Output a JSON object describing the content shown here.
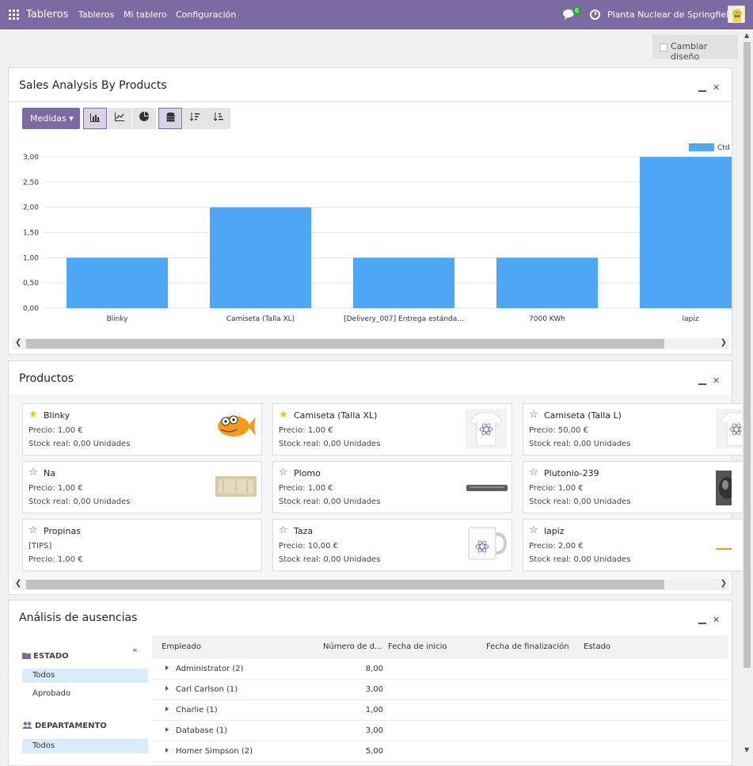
{
  "topbar": {
    "app_title": "Tableros",
    "menu": [
      "Tableros",
      "Mi tablero",
      "Configuración"
    ],
    "chat_badge": "6",
    "company": "Planta Nuclear de Springfield"
  },
  "toolbar": {
    "layout_button": "Cambiar diseño"
  },
  "sales_panel": {
    "title": "Sales Analysis By Products",
    "measures_label": "Medidas"
  },
  "chart_data": {
    "type": "bar",
    "categories": [
      "Blinky",
      "Camiseta (Talla XL)",
      "[Delivery_007] Entrega estánda...",
      "7000 KWh",
      "lapiz"
    ],
    "series": [
      {
        "name": "Ctd",
        "values": [
          1,
          2,
          1,
          1,
          3
        ]
      }
    ],
    "ylim": [
      0,
      3
    ],
    "yticks": [
      "0,00",
      "0,50",
      "1,00",
      "1,50",
      "2,00",
      "2,50",
      "3,00"
    ],
    "color": "#4ea7f4",
    "legend_label": "Ctd",
    "legend": "top-right",
    "grid": true
  },
  "products_panel": {
    "title": "Productos",
    "cards": [
      {
        "name": "Blinky",
        "favorite": true,
        "line1": "Precio: 1,00 €",
        "line2": "Stock real: 0,00 Unidades",
        "image": "fish"
      },
      {
        "name": "Camiseta (Talla XL)",
        "favorite": true,
        "line1": "Precio: 1,00 €",
        "line2": "Stock real: 0,00 Unidades",
        "image": "tshirt"
      },
      {
        "name": "Camiseta (Talla L)",
        "favorite": false,
        "line1": "Precio: 50,00 €",
        "line2": "Stock real: 0,00 Unidades",
        "image": "tshirt"
      },
      {
        "name": "Na",
        "favorite": false,
        "line1": "Precio: 1,00 €",
        "line2": "Stock real: 0,00 Unidades",
        "image": "sodium"
      },
      {
        "name": "Plomo",
        "favorite": false,
        "line1": "Precio: 1,00 €",
        "line2": "Stock real: 0,00 Unidades",
        "image": "lead"
      },
      {
        "name": "Plutonio-239",
        "favorite": false,
        "line1": "Precio: 1,00 €",
        "line2": "Stock real: 0,00 Unidades",
        "image": "plutonium"
      },
      {
        "name": "Propinas",
        "favorite": false,
        "line1": "[TIPS]",
        "line2": "Precio: 1,00 €",
        "image": ""
      },
      {
        "name": "Taza",
        "favorite": false,
        "line1": "Precio: 10,00 €",
        "line2": "Stock real: 0,00 Unidades",
        "image": "mug"
      },
      {
        "name": "lapiz",
        "favorite": false,
        "line1": "Precio: 2,00 €",
        "line2": "Stock real: 0,00 Unidades",
        "image": "pencil"
      }
    ]
  },
  "absences_panel": {
    "title": "Análisis de ausencias",
    "filters": {
      "estado_label": "ESTADO",
      "estado_items": [
        "Todos",
        "Aprobado"
      ],
      "departamento_label": "DEPARTAMENTO",
      "departamento_items": [
        "Todos"
      ]
    },
    "columns": [
      "Empleado",
      "Número de d...",
      "Fecha de inicio",
      "Fecha de finalización",
      "Estado"
    ],
    "rows": [
      {
        "name": "Administrator (2)",
        "value": "8,00"
      },
      {
        "name": "Carl Carlson (1)",
        "value": "3,00"
      },
      {
        "name": "Charlie (1)",
        "value": "1,00"
      },
      {
        "name": "Database (1)",
        "value": "3,00"
      },
      {
        "name": "Homer Simpson (2)",
        "value": "5,00"
      }
    ]
  }
}
